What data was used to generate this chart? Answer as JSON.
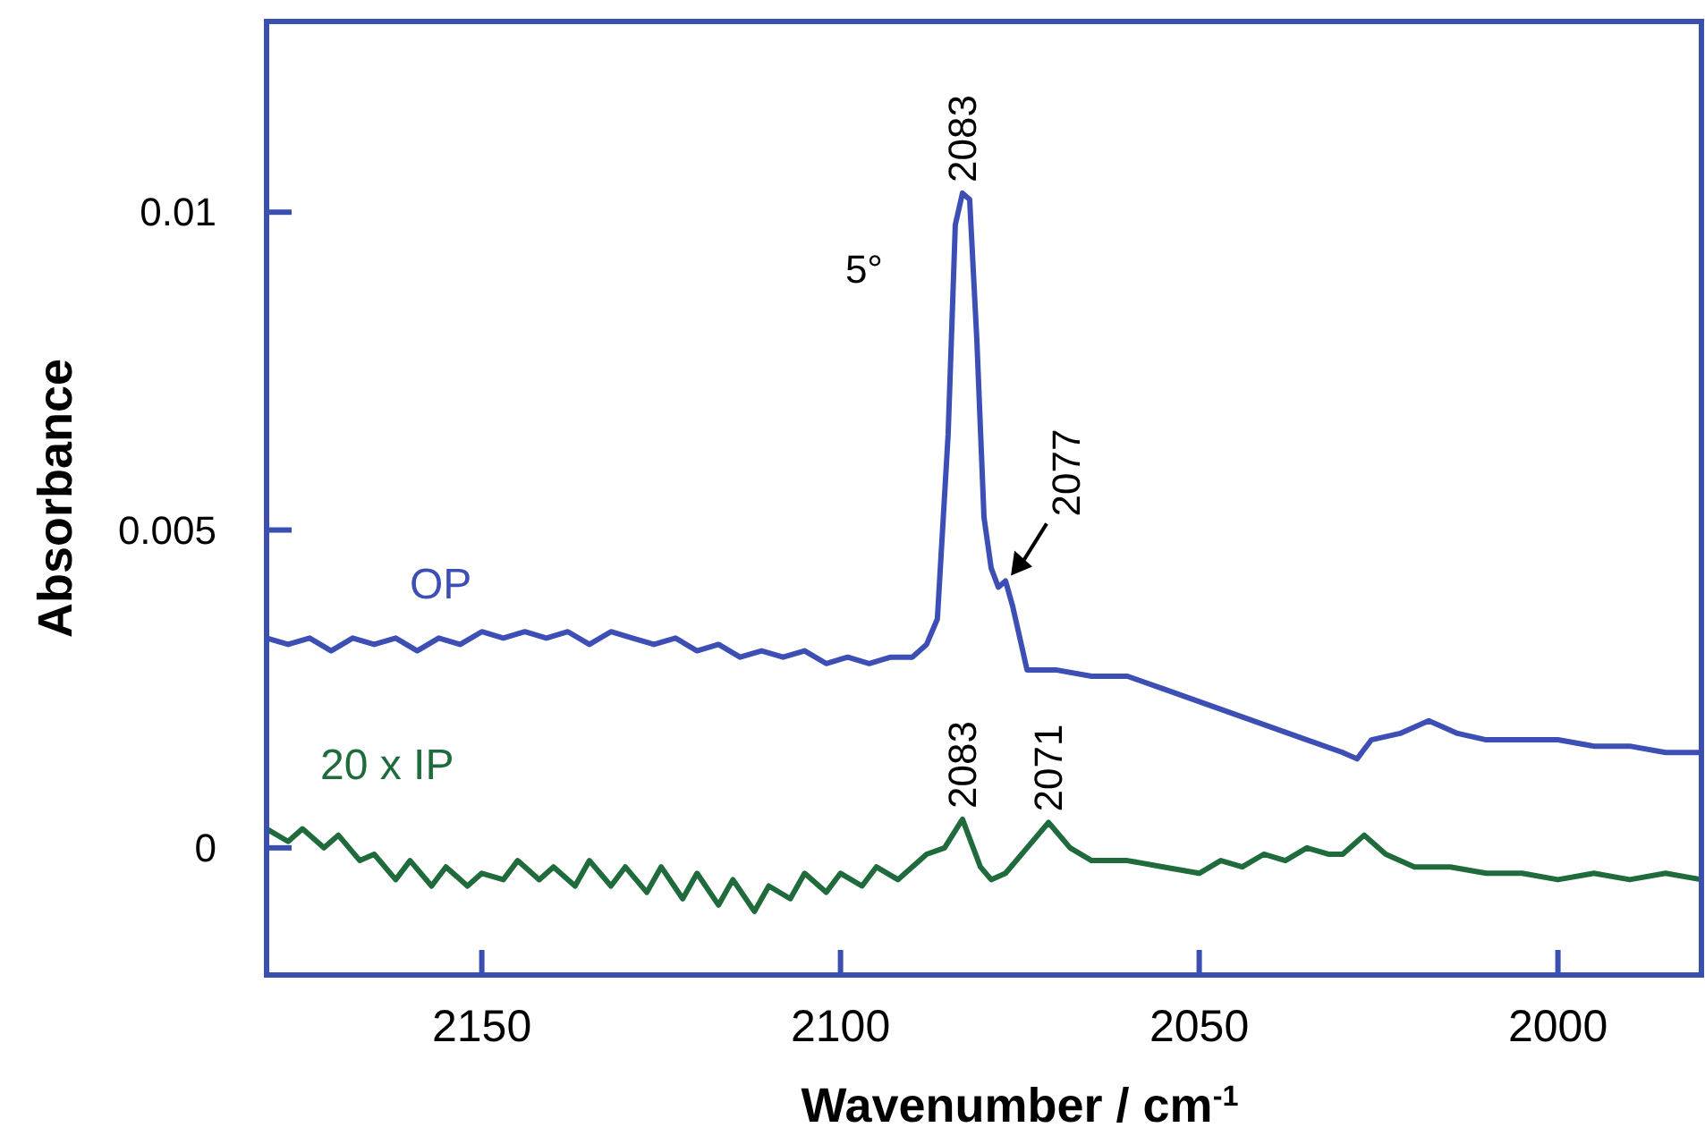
{
  "chart_data": {
    "type": "line",
    "xlabel": "Wavenumber / cm$^{-1}$",
    "ylabel": "Absorbance",
    "xlim": [
      2180,
      1980
    ],
    "xticks": [
      2150,
      2100,
      2050,
      2000
    ],
    "ylim": [
      -0.002,
      0.013
    ],
    "yticks": [
      0,
      0.005,
      0.01
    ],
    "grid": false,
    "line_style": "solid",
    "series": [
      {
        "name": "OP",
        "color": "#3d4fb5",
        "x": [
          2180,
          2177,
          2174,
          2171,
          2168,
          2165,
          2162,
          2159,
          2156,
          2153,
          2150,
          2147,
          2144,
          2141,
          2138,
          2135,
          2132,
          2129,
          2126,
          2123,
          2120,
          2117,
          2114,
          2111,
          2108,
          2105,
          2102,
          2099,
          2096,
          2093,
          2090,
          2088,
          2086.5,
          2085,
          2084,
          2083,
          2082,
          2081,
          2080,
          2079,
          2078,
          2077,
          2076,
          2074,
          2070,
          2065,
          2060,
          2055,
          2050,
          2045,
          2040,
          2035,
          2030,
          2028,
          2026,
          2022,
          2018,
          2014,
          2010,
          2005,
          2000,
          1995,
          1990,
          1985,
          1980
        ],
        "values": [
          0.0033,
          0.0032,
          0.0033,
          0.0031,
          0.0033,
          0.0032,
          0.0033,
          0.0031,
          0.0033,
          0.0032,
          0.0034,
          0.0033,
          0.0034,
          0.0033,
          0.0034,
          0.0032,
          0.0034,
          0.0033,
          0.0032,
          0.0033,
          0.0031,
          0.0032,
          0.003,
          0.0031,
          0.003,
          0.0031,
          0.0029,
          0.003,
          0.0029,
          0.003,
          0.003,
          0.0032,
          0.0036,
          0.0065,
          0.0098,
          0.0103,
          0.0102,
          0.008,
          0.0052,
          0.0044,
          0.0041,
          0.0042,
          0.0038,
          0.0028,
          0.0028,
          0.0027,
          0.0027,
          0.0025,
          0.0023,
          0.0021,
          0.0019,
          0.0017,
          0.0015,
          0.0014,
          0.0017,
          0.0018,
          0.002,
          0.0018,
          0.0017,
          0.0017,
          0.0017,
          0.0016,
          0.0016,
          0.0015,
          0.0015
        ]
      },
      {
        "name": "20 x IP",
        "color": "#1f6b3c",
        "x": [
          2180,
          2177,
          2175,
          2172,
          2170,
          2167,
          2165,
          2162,
          2160,
          2157,
          2155,
          2152,
          2150,
          2147,
          2145,
          2142,
          2140,
          2137,
          2135,
          2132,
          2130,
          2127,
          2125,
          2122,
          2120,
          2117,
          2115,
          2112,
          2110,
          2107,
          2105,
          2102,
          2100,
          2097,
          2095,
          2092,
          2090,
          2088,
          2085.5,
          2083,
          2080.5,
          2079,
          2077,
          2074,
          2071,
          2068,
          2065,
          2060,
          2055,
          2050,
          2047,
          2044,
          2041,
          2038,
          2035,
          2032,
          2030,
          2027,
          2024,
          2020,
          2015,
          2010,
          2005,
          2000,
          1995,
          1990,
          1985,
          1980
        ],
        "values": [
          0.0003,
          0.0001,
          0.0003,
          0.0,
          0.0002,
          -0.0002,
          -0.0001,
          -0.0005,
          -0.0002,
          -0.0006,
          -0.0003,
          -0.0006,
          -0.0004,
          -0.0005,
          -0.0002,
          -0.0005,
          -0.0003,
          -0.0006,
          -0.0002,
          -0.0006,
          -0.0003,
          -0.0007,
          -0.0003,
          -0.0008,
          -0.0004,
          -0.0009,
          -0.0005,
          -0.001,
          -0.0006,
          -0.0008,
          -0.0004,
          -0.0007,
          -0.0004,
          -0.0006,
          -0.0003,
          -0.0005,
          -0.0003,
          -0.0001,
          0.0,
          0.00045,
          -0.0003,
          -0.0005,
          -0.0004,
          0.0,
          0.0004,
          0.0,
          -0.0002,
          -0.0002,
          -0.0003,
          -0.0004,
          -0.0002,
          -0.0003,
          -0.0001,
          -0.0002,
          0.0,
          -0.0001,
          -0.0001,
          0.0002,
          -0.0001,
          -0.0003,
          -0.0003,
          -0.0004,
          -0.0004,
          -0.0005,
          -0.0004,
          -0.0005,
          -0.0004,
          -0.0005
        ]
      }
    ],
    "annotations": [
      {
        "text": "2083",
        "x": 2083,
        "y": 0.0103
      },
      {
        "text": "2077",
        "x": 2077,
        "y": 0.0042
      },
      "5°",
      {
        "text": "2083",
        "x": 2083,
        "y": 0.00045
      },
      {
        "text": "2071",
        "x": 2071,
        "y": 0.0004
      }
    ]
  }
}
